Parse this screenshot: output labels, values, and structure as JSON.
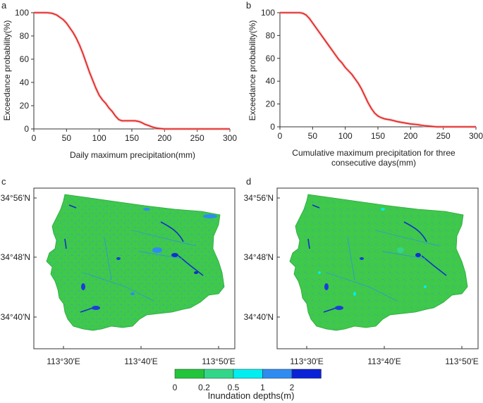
{
  "panels": [
    {
      "letter": "a"
    },
    {
      "letter": "b"
    },
    {
      "letter": "c"
    },
    {
      "letter": "d"
    }
  ],
  "chart_data": [
    {
      "id": "a",
      "type": "line",
      "title": "",
      "xlabel": "Daily maximum precipitation(mm)",
      "ylabel": "Exceedance probability(%)",
      "xlim": [
        0,
        300
      ],
      "ylim": [
        0,
        100
      ],
      "xticks": [
        "0",
        "50",
        "100",
        "150",
        "200",
        "250",
        "300"
      ],
      "yticks": [
        "0",
        "20",
        "40",
        "60",
        "80",
        "100"
      ],
      "series": [
        {
          "name": "exceedance",
          "color": "#e0201e",
          "x": [
            0,
            10,
            20,
            28,
            35,
            40,
            45,
            50,
            55,
            60,
            65,
            70,
            75,
            80,
            85,
            90,
            95,
            100,
            105,
            110,
            115,
            120,
            125,
            130,
            135,
            140,
            145,
            150,
            155,
            160,
            165,
            170,
            175,
            180,
            185,
            190,
            200,
            250,
            300
          ],
          "y": [
            100,
            100,
            100,
            99.5,
            98,
            96,
            94,
            91,
            87,
            83,
            78,
            72,
            65,
            57,
            49,
            42,
            35,
            29,
            25,
            22,
            18,
            15,
            11,
            8,
            7,
            7,
            7,
            7,
            7,
            6.5,
            5.5,
            4,
            3,
            2,
            1,
            0.5,
            0,
            0,
            0
          ]
        }
      ]
    },
    {
      "id": "b",
      "type": "line",
      "title": "",
      "xlabel": "Cumulative maximum precipitation for three consecutive days(mm)",
      "ylabel": "Exceedance probability(%)",
      "xlim": [
        0,
        300
      ],
      "ylim": [
        0,
        100
      ],
      "xticks": [
        "0",
        "50",
        "100",
        "150",
        "200",
        "250",
        "300"
      ],
      "yticks": [
        "0",
        "20",
        "40",
        "60",
        "80",
        "100"
      ],
      "series": [
        {
          "name": "exceedance",
          "color": "#e0201e",
          "x": [
            0,
            10,
            20,
            30,
            35,
            40,
            45,
            50,
            55,
            60,
            65,
            70,
            75,
            80,
            85,
            90,
            95,
            100,
            105,
            110,
            115,
            120,
            125,
            130,
            135,
            140,
            145,
            150,
            155,
            160,
            170,
            180,
            190,
            200,
            210,
            220,
            230,
            240,
            250,
            300
          ],
          "y": [
            100,
            100,
            100,
            100,
            99.5,
            98,
            95,
            91,
            87,
            83,
            79,
            75,
            71,
            67,
            63,
            59,
            56,
            52,
            49,
            46,
            42,
            38,
            33,
            27,
            21,
            16,
            12,
            9.5,
            8,
            7,
            6,
            4.5,
            3.5,
            2.5,
            2,
            1,
            0.5,
            0,
            0,
            0
          ]
        }
      ]
    },
    {
      "id": "c",
      "type": "heatmap",
      "title": "",
      "xticks": [
        "113°30′E",
        "113°40′E",
        "113°50′E"
      ],
      "yticks": [
        "34°56′N",
        "34°48′N",
        "34°40′N"
      ]
    },
    {
      "id": "d",
      "type": "heatmap",
      "title": "",
      "xticks": [
        "113°30′E",
        "113°40′E",
        "113°50′E"
      ],
      "yticks": [
        "34°56′N",
        "34°48′N",
        "34°40′N"
      ]
    }
  ],
  "legend": {
    "title": "Inundation depths(m)",
    "labels": [
      "0",
      "0.2",
      "0.5",
      "1",
      "2"
    ],
    "colors": [
      "#21c43a",
      "#33d688",
      "#00eef0",
      "#2e8cf0",
      "#0a22d6"
    ]
  },
  "colors": {
    "land": "#3fc84a",
    "curve": "#e0201e",
    "frame": "#333333"
  }
}
